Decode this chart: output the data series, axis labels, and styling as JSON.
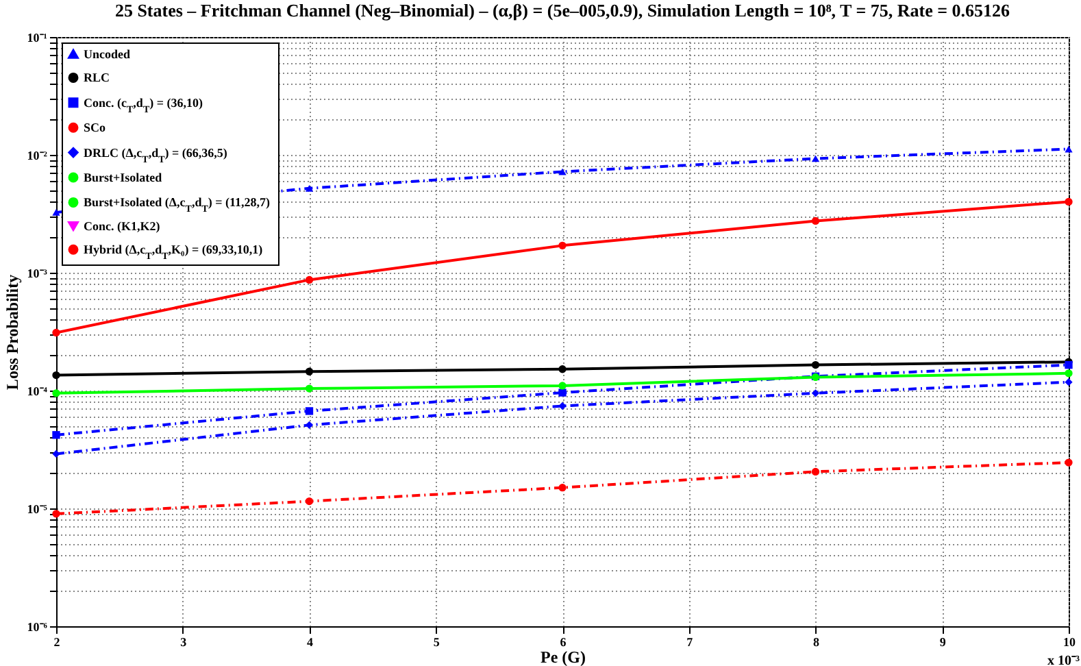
{
  "chart_data": {
    "type": "line",
    "title": "25 States – Fritchman Channel (Neg–Binomial) – (α,β) = (5e–005,0.9), Simulation Length = 10⁸, T = 75, Rate = 0.65126",
    "xlabel": "Pe (G)",
    "ylabel": "Loss Probability",
    "annotations": [
      "x 10⁻³"
    ],
    "x": [
      2,
      4,
      6,
      8,
      10
    ],
    "series": [
      {
        "name": "Uncoded",
        "color": "#0000ff",
        "marker": "triangle",
        "line_style": "dashdot",
        "values": [
          0.00325,
          0.0052,
          0.0072,
          0.0093,
          0.0112
        ]
      },
      {
        "name": "RLC",
        "color": "#000000",
        "marker": "circle",
        "line_style": "solid",
        "values": [
          0.000135,
          0.000145,
          0.000152,
          0.000165,
          0.000175
        ]
      },
      {
        "name": "Conc. (c$_{T}$,d$_{T}$) = (36,10)",
        "color": "#0000ff",
        "marker": "square",
        "line_style": "dashdot",
        "values": [
          4.2e-05,
          6.7e-05,
          9.6e-05,
          0.000132,
          0.000165
        ]
      },
      {
        "name": "SCo",
        "color": "#ff0000",
        "marker": "circle",
        "line_style": "solid",
        "values": [
          0.00031,
          0.00087,
          0.0017,
          0.00275,
          0.004
        ]
      },
      {
        "name": "DRLC (Δ,c$_{T}$,d$_{T}$) = (66,36,5)",
        "color": "#0000ff",
        "marker": "diamond",
        "line_style": "dashdot",
        "values": [
          2.9e-05,
          5.1e-05,
          7.4e-05,
          9.5e-05,
          0.000118
        ]
      },
      {
        "name": "Burst+Isolated",
        "color": "#00ff00",
        "marker": "circle",
        "line_style": "solid",
        "values": [
          null,
          null,
          null,
          null,
          null
        ]
      },
      {
        "name": "Burst+Isolated (Δ,c$_{T}$,d$_{T}$) = (11,28,7)",
        "color": "#00ff00",
        "marker": "circle",
        "line_style": "solid",
        "values": [
          9.5e-05,
          0.000104,
          0.00011,
          0.00013,
          0.00014
        ]
      },
      {
        "name": "Conc. (K1,K2)",
        "color": "#ff00ff",
        "marker": "triangle-down",
        "line_style": "solid",
        "values": [
          null,
          null,
          null,
          null,
          null
        ]
      },
      {
        "name": "Hybrid (Δ,c$_{T}$,d$_{T}$,K₀) = (69,33,10,1)",
        "color": "#ff0000",
        "marker": "circle",
        "line_style": "dashdot",
        "values": [
          9e-06,
          1.15e-05,
          1.5e-05,
          2.05e-05,
          2.45e-05
        ]
      }
    ],
    "xlim": [
      2,
      10
    ],
    "xticks": [
      2,
      3,
      4,
      5,
      6,
      7,
      8,
      9,
      10
    ],
    "ylim": [
      1e-06,
      0.1
    ],
    "log": true,
    "yticks": [
      {
        "value": 1e-06,
        "label": "10⁻⁶"
      },
      {
        "value": 2e-06,
        "label": null
      },
      {
        "value": 3e-06,
        "label": null
      },
      {
        "value": 4e-06,
        "label": null
      },
      {
        "value": 5e-06,
        "label": null
      },
      {
        "value": 6e-06,
        "label": null
      },
      {
        "value": 7e-06,
        "label": null
      },
      {
        "value": 8e-06,
        "label": null
      },
      {
        "value": 9e-06,
        "label": null
      },
      {
        "value": 1e-05,
        "label": "10⁻⁵"
      },
      {
        "value": 2e-05,
        "label": null
      },
      {
        "value": 3e-05,
        "label": null
      },
      {
        "value": 4e-05,
        "label": null
      },
      {
        "value": 5e-05,
        "label": null
      },
      {
        "value": 6e-05,
        "label": null
      },
      {
        "value": 7e-05,
        "label": null
      },
      {
        "value": 8e-05,
        "label": null
      },
      {
        "value": 9e-05,
        "label": null
      },
      {
        "value": 0.0001,
        "label": "10⁻⁴"
      },
      {
        "value": 0.0002,
        "label": null
      },
      {
        "value": 0.0003,
        "label": null
      },
      {
        "value": 0.0004,
        "label": null
      },
      {
        "value": 0.0005,
        "label": null
      },
      {
        "value": 0.0006,
        "label": null
      },
      {
        "value": 0.0007,
        "label": null
      },
      {
        "value": 0.0008,
        "label": null
      },
      {
        "value": 0.0009,
        "label": null
      },
      {
        "value": 0.001,
        "label": "10⁻³"
      },
      {
        "value": 0.002,
        "label": null
      },
      {
        "value": 0.003,
        "label": null
      },
      {
        "value": 0.004,
        "label": null
      },
      {
        "value": 0.005,
        "label": null
      },
      {
        "value": 0.006,
        "label": null
      },
      {
        "value": 0.007,
        "label": null
      },
      {
        "value": 0.008,
        "label": null
      },
      {
        "value": 0.009,
        "label": null
      },
      {
        "value": 0.01,
        "label": "10⁻²"
      },
      {
        "value": 0.02,
        "label": null
      },
      {
        "value": 0.03,
        "label": null
      },
      {
        "value": 0.04,
        "label": null
      },
      {
        "value": 0.05,
        "label": null
      },
      {
        "value": 0.06,
        "label": null
      },
      {
        "value": 0.07,
        "label": null
      },
      {
        "value": 0.08,
        "label": null
      },
      {
        "value": 0.09,
        "label": null
      },
      {
        "value": 0.1,
        "label": "10⁻¹"
      }
    ],
    "grid": true,
    "legend": "top left"
  }
}
